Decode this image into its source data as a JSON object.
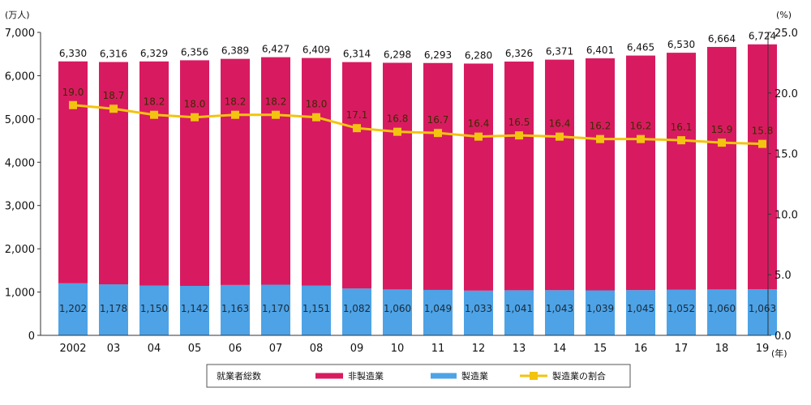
{
  "chart_data": {
    "type": "bar",
    "stacked": true,
    "categories": [
      "2002",
      "03",
      "04",
      "05",
      "06",
      "07",
      "08",
      "09",
      "10",
      "11",
      "12",
      "13",
      "14",
      "15",
      "16",
      "17",
      "18",
      "19"
    ],
    "totals": [
      6330,
      6316,
      6329,
      6356,
      6389,
      6427,
      6409,
      6314,
      6298,
      6293,
      6280,
      6326,
      6371,
      6401,
      6465,
      6530,
      6664,
      6724
    ],
    "total_labels": [
      "6,330",
      "6,316",
      "6,329",
      "6,356",
      "6,389",
      "6,427",
      "6,409",
      "6,314",
      "6,298",
      "6,293",
      "6,280",
      "6,326",
      "6,371",
      "6,401",
      "6,465",
      "6,530",
      "6,664",
      "6,724"
    ],
    "series": [
      {
        "name": "非製造業",
        "color": "#d81b60",
        "values": [
          5128,
          5138,
          5179,
          5214,
          5226,
          5257,
          5258,
          5232,
          5238,
          5244,
          5247,
          5285,
          5328,
          5362,
          5420,
          5478,
          5604,
          5661
        ]
      },
      {
        "name": "製造業",
        "color": "#4da3e6",
        "values": [
          1202,
          1178,
          1150,
          1142,
          1163,
          1170,
          1151,
          1082,
          1060,
          1049,
          1033,
          1041,
          1043,
          1039,
          1045,
          1052,
          1060,
          1063
        ],
        "labels": [
          "1,202",
          "1,178",
          "1,150",
          "1,142",
          "1,163",
          "1,170",
          "1,151",
          "1,082",
          "1,060",
          "1,049",
          "1,033",
          "1,041",
          "1,043",
          "1,039",
          "1,045",
          "1,052",
          "1,060",
          "1,063"
        ]
      },
      {
        "name": "製造業の割合",
        "type": "line",
        "axis": "right",
        "color": "#f2c40f",
        "values": [
          19.0,
          18.7,
          18.2,
          18.0,
          18.2,
          18.2,
          18.0,
          17.1,
          16.8,
          16.7,
          16.4,
          16.5,
          16.4,
          16.2,
          16.2,
          16.1,
          15.9,
          15.8
        ],
        "labels": [
          "19.0",
          "18.7",
          "18.2",
          "18.0",
          "18.2",
          "18.2",
          "18.0",
          "17.1",
          "16.8",
          "16.7",
          "16.4",
          "16.5",
          "16.4",
          "16.2",
          "16.2",
          "16.1",
          "15.9",
          "15.8"
        ]
      }
    ],
    "left_axis": {
      "unit_label": "(万人)",
      "ylim": [
        0,
        7000
      ],
      "ticks": [
        0,
        1000,
        2000,
        3000,
        4000,
        5000,
        6000,
        7000
      ],
      "tick_labels": [
        "0",
        "1,000",
        "2,000",
        "3,000",
        "4,000",
        "5,000",
        "6,000",
        "7,000"
      ]
    },
    "right_axis": {
      "unit_label": "(%)",
      "ylim": [
        0,
        25
      ],
      "ticks": [
        0,
        5,
        10,
        15,
        20,
        25
      ],
      "tick_labels": [
        "0.0",
        "5.0",
        "10.0",
        "15.0",
        "20.0",
        "25.0"
      ]
    },
    "x_unit_label": "(年)",
    "legend": {
      "placement": "bottom",
      "title": "就業者総数",
      "items": [
        "非製造業",
        "製造業",
        "製造業の割合"
      ]
    },
    "grid": false
  }
}
